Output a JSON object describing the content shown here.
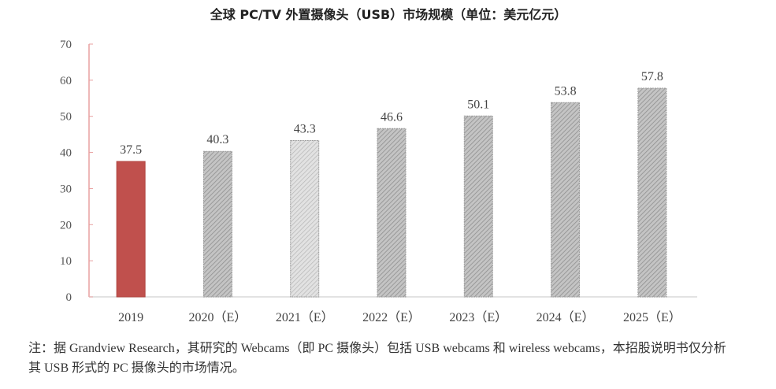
{
  "chart_data": {
    "type": "bar",
    "title": "全球 PC/TV 外置摄像头（USB）市场规模（单位：美元亿元）",
    "categories": [
      "2019",
      "2020（E）",
      "2021（E）",
      "2022（E）",
      "2023（E）",
      "2024（E）",
      "2025（E）"
    ],
    "values": [
      37.5,
      40.3,
      43.3,
      46.6,
      50.1,
      53.8,
      57.8
    ],
    "data_labels": [
      "37.5",
      "40.3",
      "43.3",
      "46.6",
      "50.1",
      "53.8",
      "57.8"
    ],
    "yticks": [
      0,
      10,
      20,
      30,
      40,
      50,
      60,
      70
    ],
    "ylim": [
      0,
      70
    ],
    "xlabel": "",
    "ylabel": "",
    "grid": false,
    "colors": {
      "actual": "#c0504d",
      "forecast": "#a6a6a6",
      "forecast_light": "#d0d0d0",
      "y_axis": "#e8a0a0",
      "x_axis": "#d9d9d9"
    }
  },
  "note": "注：据 Grandview Research，其研究的 Webcams（即 PC 摄像头）包括 USB webcams 和 wireless webcams，本招股说明书仅分析其 USB 形式的 PC 摄像头的市场情况。"
}
